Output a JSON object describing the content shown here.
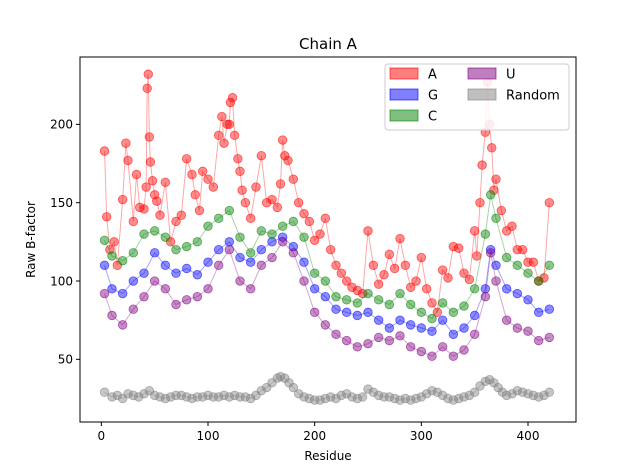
{
  "chart_data": {
    "type": "scatter",
    "title": "Chain A",
    "xlabel": "Residue",
    "ylabel": "Raw B-factor",
    "xlim": [
      -20,
      445
    ],
    "ylim": [
      10,
      243
    ],
    "xticks": [
      0,
      100,
      200,
      300,
      400
    ],
    "yticks": [
      50,
      100,
      150,
      200
    ],
    "grid": false,
    "legend": {
      "placement": "top-right",
      "ncol": 2
    },
    "marker_alpha": 0.45,
    "connect_lines": true,
    "series": [
      {
        "name": "A",
        "color": "#ff0000",
        "x": [
          3,
          5,
          8,
          12,
          15,
          20,
          23,
          25,
          30,
          33,
          36,
          40,
          42,
          43,
          44,
          45,
          46,
          48,
          50,
          52,
          55,
          60,
          65,
          70,
          75,
          80,
          85,
          88,
          92,
          95,
          100,
          105,
          110,
          113,
          115,
          118,
          120,
          121,
          123,
          125,
          128,
          130,
          132,
          135,
          140,
          145,
          150,
          155,
          160,
          165,
          168,
          170,
          172,
          175,
          180,
          185,
          190,
          195,
          200,
          205,
          210,
          215,
          220,
          225,
          230,
          235,
          240,
          245,
          250,
          255,
          260,
          265,
          270,
          275,
          280,
          285,
          290,
          295,
          300,
          305,
          310,
          315,
          320,
          325,
          330,
          335,
          340,
          345,
          350,
          352,
          355,
          357,
          360,
          362,
          364,
          366,
          368,
          370,
          375,
          380,
          385,
          390,
          395,
          400,
          405,
          410,
          415,
          420
        ],
        "y": [
          183,
          141,
          120,
          125,
          110,
          152,
          188,
          177,
          138,
          168,
          147,
          146,
          160,
          223,
          232,
          192,
          176,
          164,
          155,
          151,
          142,
          163,
          125,
          138,
          142,
          178,
          168,
          155,
          145,
          170,
          165,
          160,
          193,
          205,
          188,
          200,
          200,
          214,
          217,
          193,
          178,
          170,
          158,
          150,
          140,
          160,
          180,
          150,
          152,
          147,
          162,
          190,
          180,
          177,
          165,
          150,
          143,
          138,
          126,
          130,
          140,
          120,
          110,
          105,
          100,
          96,
          94,
          92,
          132,
          110,
          98,
          104,
          117,
          108,
          127,
          110,
          96,
          100,
          115,
          95,
          86,
          80,
          107,
          102,
          122,
          121,
          105,
          101,
          132,
          116,
          150,
          174,
          195,
          227,
          200,
          185,
          158,
          165,
          145,
          132,
          135,
          120,
          120,
          112,
          112,
          100,
          102,
          150
        ]
      },
      {
        "name": "G",
        "color": "#0000ff",
        "x": [
          3,
          10,
          20,
          30,
          40,
          50,
          60,
          70,
          80,
          90,
          100,
          110,
          120,
          130,
          140,
          150,
          160,
          170,
          180,
          190,
          200,
          210,
          220,
          230,
          240,
          250,
          260,
          270,
          280,
          290,
          300,
          310,
          320,
          330,
          340,
          350,
          360,
          365,
          370,
          380,
          390,
          400,
          410,
          420
        ],
        "y": [
          110,
          95,
          92,
          100,
          105,
          118,
          110,
          105,
          108,
          104,
          112,
          120,
          125,
          115,
          112,
          120,
          125,
          128,
          122,
          112,
          95,
          90,
          82,
          80,
          78,
          80,
          75,
          70,
          75,
          72,
          70,
          68,
          75,
          66,
          70,
          78,
          95,
          120,
          110,
          95,
          92,
          88,
          80,
          82
        ]
      },
      {
        "name": "C",
        "color": "#008000",
        "x": [
          3,
          10,
          20,
          30,
          40,
          50,
          60,
          70,
          80,
          90,
          100,
          110,
          120,
          130,
          140,
          150,
          160,
          170,
          180,
          190,
          200,
          210,
          220,
          230,
          240,
          250,
          260,
          270,
          280,
          290,
          300,
          310,
          320,
          330,
          340,
          350,
          360,
          365,
          370,
          380,
          390,
          400,
          410,
          420
        ],
        "y": [
          126,
          116,
          113,
          118,
          130,
          132,
          128,
          120,
          122,
          125,
          135,
          140,
          145,
          128,
          118,
          132,
          130,
          135,
          138,
          128,
          105,
          100,
          90,
          88,
          86,
          92,
          88,
          85,
          92,
          85,
          80,
          76,
          86,
          80,
          84,
          95,
          130,
          155,
          140,
          115,
          110,
          105,
          100,
          110
        ]
      },
      {
        "name": "U",
        "color": "#800080",
        "x": [
          3,
          10,
          20,
          30,
          40,
          50,
          60,
          70,
          80,
          90,
          100,
          110,
          120,
          130,
          140,
          150,
          160,
          170,
          180,
          190,
          200,
          210,
          220,
          230,
          240,
          250,
          260,
          270,
          280,
          290,
          300,
          310,
          320,
          330,
          340,
          350,
          360,
          365,
          370,
          380,
          390,
          400,
          410,
          420
        ],
        "y": [
          92,
          78,
          72,
          82,
          90,
          100,
          95,
          85,
          88,
          90,
          95,
          110,
          120,
          100,
          95,
          110,
          115,
          125,
          118,
          100,
          80,
          72,
          66,
          62,
          58,
          60,
          64,
          62,
          65,
          58,
          55,
          52,
          58,
          52,
          56,
          66,
          90,
          118,
          100,
          75,
          70,
          68,
          62,
          64
        ]
      },
      {
        "name": "Random",
        "color": "#808080",
        "x": [
          3,
          10,
          15,
          20,
          25,
          30,
          35,
          40,
          45,
          50,
          55,
          60,
          65,
          70,
          75,
          80,
          85,
          90,
          95,
          100,
          105,
          110,
          115,
          120,
          125,
          130,
          135,
          140,
          145,
          150,
          155,
          160,
          165,
          168,
          172,
          176,
          180,
          185,
          190,
          195,
          200,
          205,
          210,
          215,
          220,
          225,
          230,
          235,
          240,
          245,
          250,
          255,
          260,
          265,
          270,
          275,
          280,
          285,
          290,
          295,
          300,
          305,
          310,
          315,
          320,
          325,
          330,
          335,
          340,
          345,
          350,
          355,
          360,
          364,
          368,
          372,
          376,
          380,
          385,
          390,
          395,
          400,
          405,
          410,
          415,
          420
        ],
        "y": [
          29,
          26,
          27,
          25,
          28,
          27,
          26,
          28,
          30,
          27,
          26,
          25,
          26,
          27,
          27,
          26,
          25,
          26,
          26,
          27,
          26,
          26,
          27,
          26,
          27,
          26,
          26,
          25,
          27,
          30,
          32,
          35,
          38,
          39,
          38,
          35,
          32,
          28,
          26,
          25,
          24,
          24,
          25,
          26,
          25,
          27,
          28,
          26,
          25,
          26,
          31,
          29,
          27,
          26,
          26,
          25,
          24,
          25,
          24,
          25,
          26,
          28,
          30,
          29,
          27,
          25,
          24,
          25,
          26,
          27,
          29,
          33,
          36,
          37,
          35,
          32,
          29,
          27,
          28,
          30,
          29,
          28,
          27,
          26,
          27,
          29
        ]
      }
    ]
  }
}
